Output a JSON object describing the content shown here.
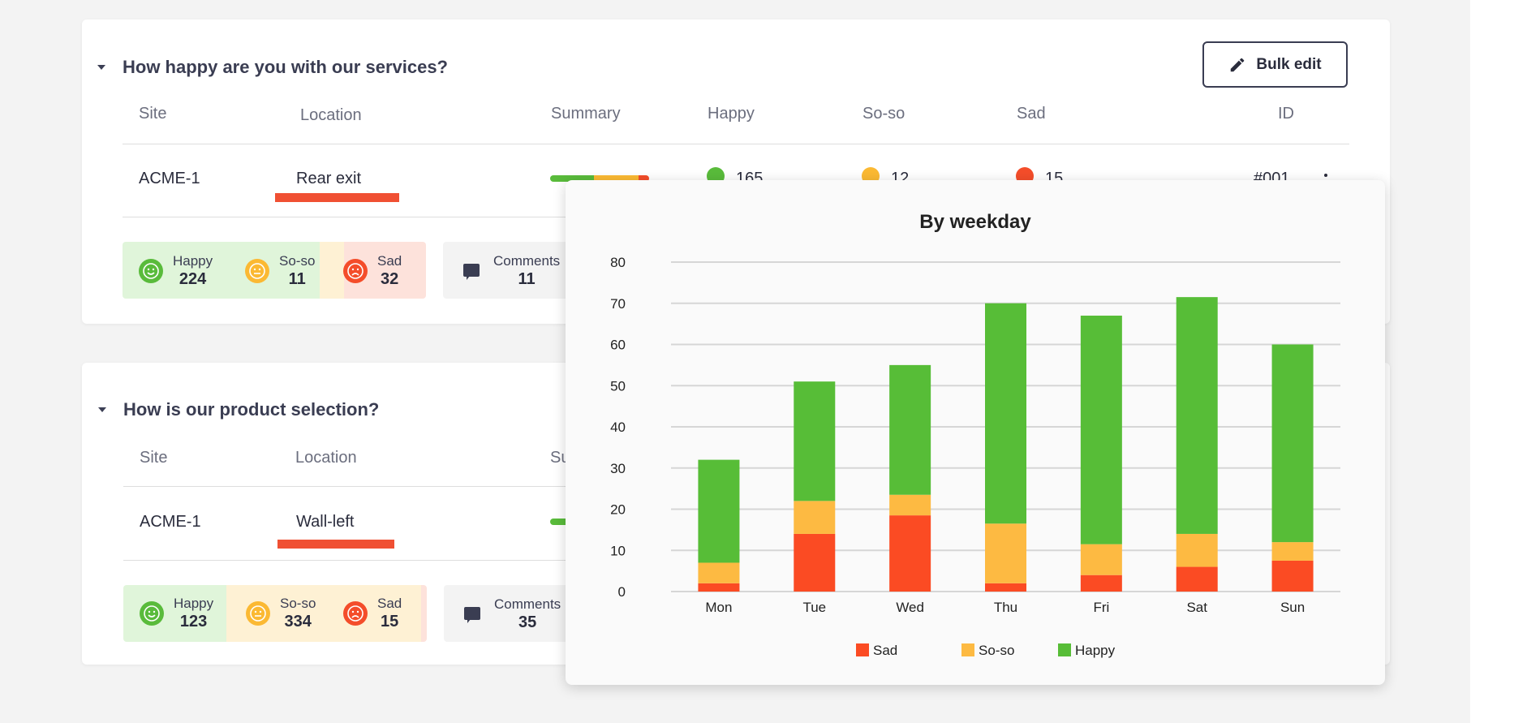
{
  "colors": {
    "happy": "#59bb3b",
    "soso": "#fbb933",
    "sad": "#f44d2a",
    "happy_bg": "#e0f5da",
    "soso_bg": "#fef1d4",
    "sad_bg": "#fde2db",
    "underline": "#f05033"
  },
  "toolbar": {
    "bulk_edit_label": "Bulk edit"
  },
  "columns": {
    "site": "Site",
    "location": "Location",
    "summary": "Summary",
    "happy": "Happy",
    "soso": "So-so",
    "sad": "Sad",
    "id": "ID"
  },
  "questions": [
    {
      "title": "How happy are you with our services?",
      "row": {
        "site": "ACME-1",
        "location": "Rear exit",
        "happy": "165",
        "soso": "12",
        "sad": "15",
        "id": "#001"
      },
      "summary_fractions": {
        "happy": 0.44,
        "soso": 0.45,
        "sad": 0.11
      },
      "stats": {
        "happy_label": "Happy",
        "happy": "224",
        "soso_label": "So-so",
        "soso": "11",
        "sad_label": "Sad",
        "sad": "32",
        "comments_label": "Comments",
        "comments": "11"
      },
      "stats_fractions": {
        "happy": 0.65,
        "soso": 0.08,
        "sad": 0.27
      }
    },
    {
      "title": "How is our product selection?",
      "row": {
        "site": "ACME-1",
        "location": "Wall-left"
      },
      "stats": {
        "happy_label": "Happy",
        "happy": "123",
        "soso_label": "So-so",
        "soso": "334",
        "sad_label": "Sad",
        "sad": "15",
        "comments_label": "Comments",
        "comments": "35"
      },
      "stats_fractions": {
        "happy": 0.34,
        "soso": 0.64,
        "sad": 0.02
      }
    }
  ],
  "chart_data": {
    "type": "bar",
    "stacked": true,
    "title": "By weekday",
    "categories": [
      "Mon",
      "Tue",
      "Wed",
      "Thu",
      "Fri",
      "Sat",
      "Sun"
    ],
    "series": [
      {
        "name": "Sad",
        "color": "#fb4b23",
        "values": [
          2,
          14,
          18.5,
          2,
          4,
          6,
          7.5
        ]
      },
      {
        "name": "So-so",
        "color": "#fdba42",
        "values": [
          5,
          8,
          5,
          14.5,
          7.5,
          8,
          4.5
        ]
      },
      {
        "name": "Happy",
        "color": "#57bd37",
        "values": [
          25,
          29,
          31.5,
          53.5,
          55.5,
          57.5,
          48
        ]
      }
    ],
    "ylim": [
      0,
      80
    ],
    "yticks": [
      "0",
      "10",
      "20",
      "30",
      "40",
      "50",
      "60",
      "70",
      "80"
    ],
    "grid": true,
    "legend": "bottom"
  }
}
